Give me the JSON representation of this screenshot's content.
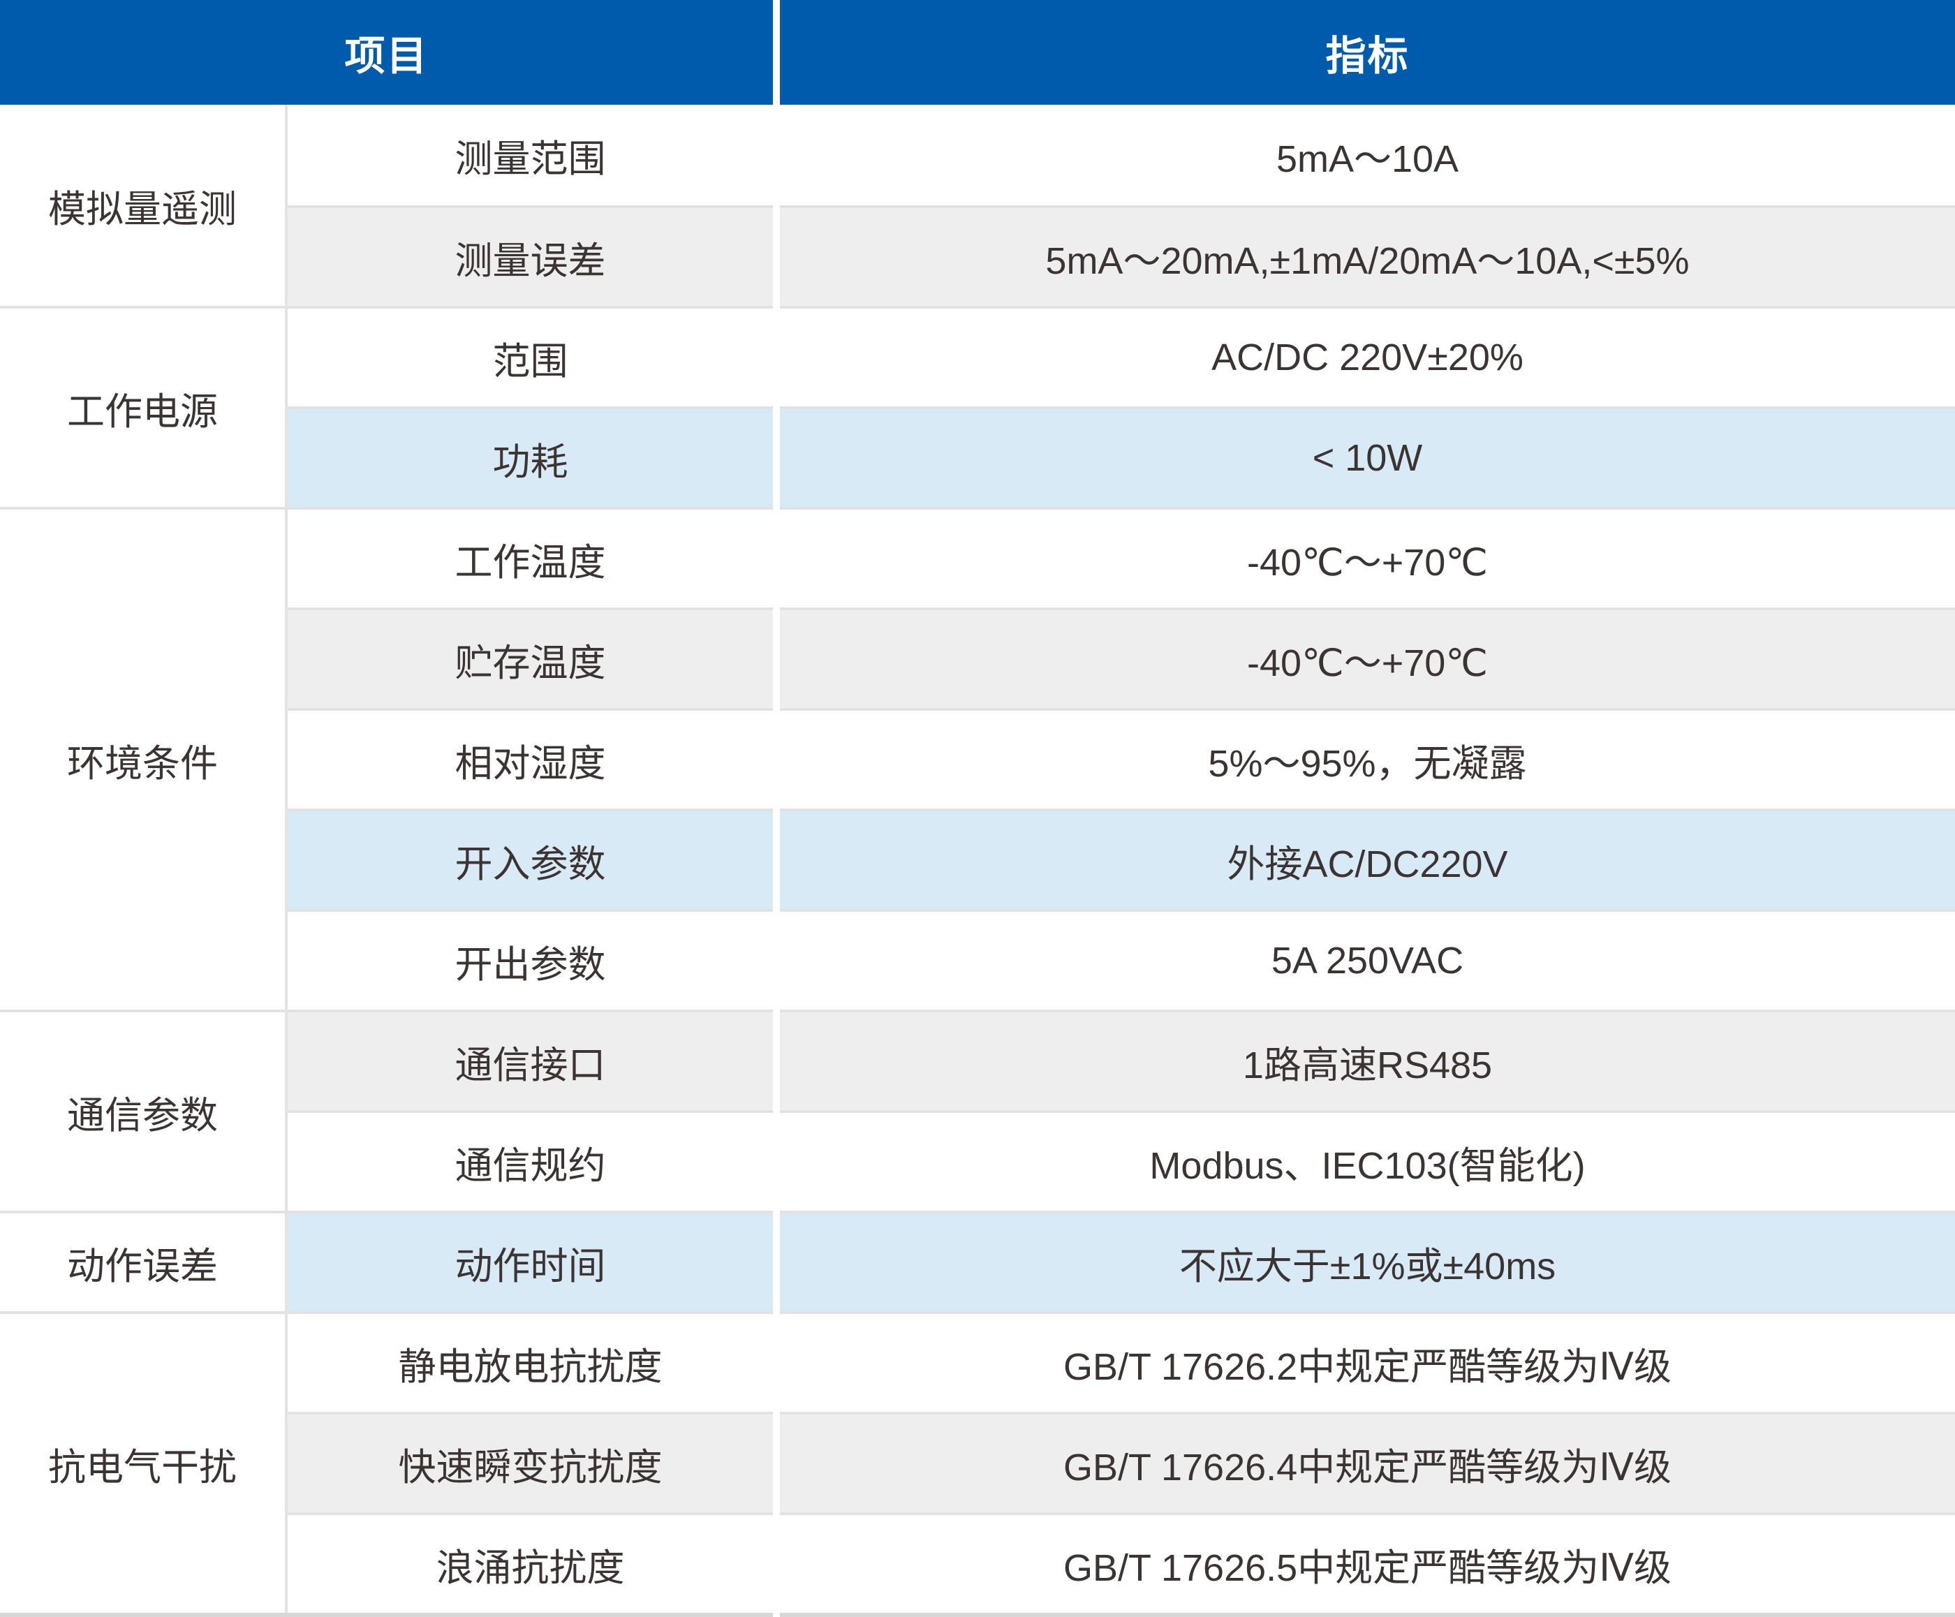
{
  "table": {
    "headers": {
      "col_item": "项目",
      "col_spec": "指标"
    },
    "groups": [
      {
        "label": "模拟量遥测",
        "rows": [
          {
            "item": "测量范围",
            "value": "5mA～10A",
            "bg": "white"
          },
          {
            "item": "测量误差",
            "value": "5mA～20mA,±1mA/20mA～10A,<±5%",
            "bg": "gray"
          }
        ]
      },
      {
        "label": "工作电源",
        "rows": [
          {
            "item": "范围",
            "value": "AC/DC 220V±20%",
            "bg": "white"
          },
          {
            "item": "功耗",
            "value": "< 10W",
            "bg": "blue"
          }
        ]
      },
      {
        "label": "环境条件",
        "rows": [
          {
            "item": "工作温度",
            "value": "-40℃～+70℃",
            "bg": "white"
          },
          {
            "item": "贮存温度",
            "value": "-40℃～+70℃",
            "bg": "gray"
          },
          {
            "item": "相对湿度",
            "value": "5%～95%，无凝露",
            "bg": "white"
          },
          {
            "item": "开入参数",
            "value": "外接AC/DC220V",
            "bg": "blue"
          },
          {
            "item": "开出参数",
            "value": "5A 250VAC",
            "bg": "white"
          }
        ]
      },
      {
        "label": "通信参数",
        "rows": [
          {
            "item": "通信接口",
            "value": "1路高速RS485",
            "bg": "gray"
          },
          {
            "item": "通信规约",
            "value": "Modbus、IEC103(智能化)",
            "bg": "white"
          }
        ]
      },
      {
        "label": "动作误差",
        "rows": [
          {
            "item": "动作时间",
            "value": "不应大于±1%或±40ms",
            "bg": "blue"
          }
        ]
      },
      {
        "label": "抗电气干扰",
        "rows": [
          {
            "item": "静电放电抗扰度",
            "value": "GB/T 17626.2中规定严酷等级为Ⅳ级",
            "bg": "white"
          },
          {
            "item": "快速瞬变抗扰度",
            "value": "GB/T 17626.4中规定严酷等级为Ⅳ级",
            "bg": "gray"
          },
          {
            "item": "浪涌抗扰度",
            "value": "GB/T 17626.5中规定严酷等级为Ⅳ级",
            "bg": "white"
          }
        ]
      }
    ],
    "colors": {
      "header_bg": "#005BAC",
      "header_text": "#FFFFFF",
      "row_white": "#FFFFFF",
      "row_gray": "#EFEEEE",
      "row_blue": "#D8EAF6",
      "divider": "#E2E2E2",
      "column_line": "#E3E3E3",
      "text": "#3B3433",
      "bottom_strip": "#D8D8D8"
    }
  }
}
